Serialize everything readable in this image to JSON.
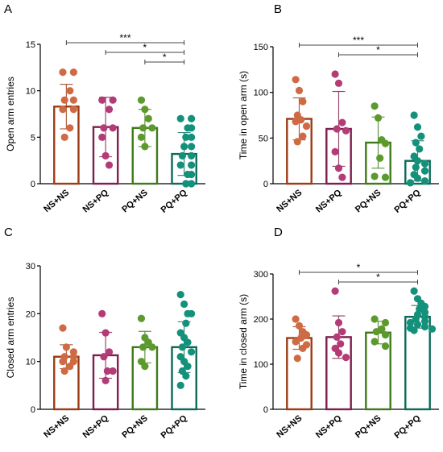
{
  "chart_data": [
    {
      "type": "bar",
      "panel_label": "A",
      "title": "",
      "xlabel": "",
      "ylabel": "Open arm entries",
      "ylim": [
        0,
        15
      ],
      "yticks": [
        "0",
        "5",
        "10",
        "15"
      ],
      "categories": [
        "NS+NS",
        "NS+PQ",
        "PQ+NS",
        "PQ+PQ"
      ],
      "means": [
        8.3,
        6.1,
        6.0,
        3.2
      ],
      "sd": [
        2.4,
        3.2,
        2.0,
        2.3
      ],
      "points": [
        [
          12,
          12,
          10,
          9,
          9,
          8,
          8,
          6,
          5
        ],
        [
          9,
          9,
          8,
          6,
          6,
          5,
          3,
          2
        ],
        [
          9,
          8,
          7,
          6,
          6,
          5,
          4
        ],
        [
          7,
          7,
          6,
          6,
          5,
          5,
          4,
          4,
          3,
          3,
          2,
          2,
          1,
          1,
          0,
          0
        ]
      ],
      "significance": [
        {
          "from": 0,
          "to": 3,
          "label": "***"
        },
        {
          "from": 1,
          "to": 3,
          "label": "*"
        },
        {
          "from": 2,
          "to": 3,
          "label": "*"
        }
      ],
      "grid": false
    },
    {
      "type": "bar",
      "panel_label": "B",
      "title": "",
      "xlabel": "",
      "ylabel": "Time in open arm (s)",
      "ylim": [
        0,
        150
      ],
      "yticks": [
        "0",
        "50",
        "100",
        "150"
      ],
      "categories": [
        "NS+NS",
        "NS+PQ",
        "PQ+NS",
        "PQ+PQ"
      ],
      "means": [
        71,
        60,
        45,
        25
      ],
      "sd": [
        23,
        41,
        28,
        22
      ],
      "points": [
        [
          114,
          102,
          90,
          75,
          70,
          68,
          63,
          52,
          46
        ],
        [
          120,
          110,
          67,
          60,
          58,
          35,
          17,
          7
        ],
        [
          85,
          72,
          48,
          44,
          28,
          8,
          7
        ],
        [
          75,
          62,
          52,
          45,
          38,
          30,
          25,
          22,
          18,
          14,
          10,
          6,
          3,
          1
        ]
      ],
      "significance": [
        {
          "from": 0,
          "to": 3,
          "label": "***"
        },
        {
          "from": 1,
          "to": 3,
          "label": "*"
        }
      ],
      "grid": false
    },
    {
      "type": "bar",
      "panel_label": "C",
      "title": "",
      "xlabel": "",
      "ylabel": "Closed arm entries",
      "ylim": [
        0,
        30
      ],
      "yticks": [
        "0",
        "10",
        "20",
        "30"
      ],
      "categories": [
        "NS+NS",
        "NS+PQ",
        "PQ+NS",
        "PQ+PQ"
      ],
      "means": [
        11,
        11.3,
        13,
        13
      ],
      "sd": [
        2.5,
        4.8,
        3.3,
        5.3
      ],
      "points": [
        [
          17,
          13,
          12,
          11,
          11,
          10,
          10,
          9,
          8
        ],
        [
          20,
          16,
          12,
          11,
          8,
          8,
          6
        ],
        [
          19,
          15,
          14,
          13,
          13,
          10,
          9
        ],
        [
          24,
          22,
          20,
          20,
          18,
          16,
          15,
          14,
          13,
          12,
          11,
          10,
          9,
          8,
          7,
          5
        ]
      ],
      "significance": [],
      "grid": false
    },
    {
      "type": "bar",
      "panel_label": "D",
      "title": "",
      "xlabel": "",
      "ylabel": "Time in closed arm (s)",
      "ylim": [
        0,
        300
      ],
      "yticks": [
        "0",
        "100",
        "200",
        "300"
      ],
      "categories": [
        "NS+NS",
        "NS+PQ",
        "PQ+NS",
        "PQ+PQ"
      ],
      "means": [
        158,
        160,
        170,
        205
      ],
      "sd": [
        25,
        47,
        25,
        25
      ],
      "points": [
        [
          200,
          185,
          172,
          165,
          158,
          150,
          143,
          135,
          113
        ],
        [
          262,
          192,
          172,
          160,
          145,
          135,
          125,
          115
        ],
        [
          200,
          192,
          178,
          172,
          165,
          150,
          140
        ],
        [
          262,
          245,
          235,
          228,
          222,
          215,
          210,
          205,
          200,
          195,
          192,
          188,
          183,
          180,
          178,
          175
        ]
      ],
      "significance": [
        {
          "from": 0,
          "to": 3,
          "label": "*"
        },
        {
          "from": 1,
          "to": 3,
          "label": "*"
        }
      ],
      "grid": false
    }
  ],
  "colors": {
    "bar_outlines": [
      "#9c3b14",
      "#7d1f4c",
      "#3f7a1a",
      "#0b6b57"
    ],
    "points": [
      "#cf6b44",
      "#b33c77",
      "#5c9a2d",
      "#13917a"
    ],
    "axis": "#000000"
  }
}
